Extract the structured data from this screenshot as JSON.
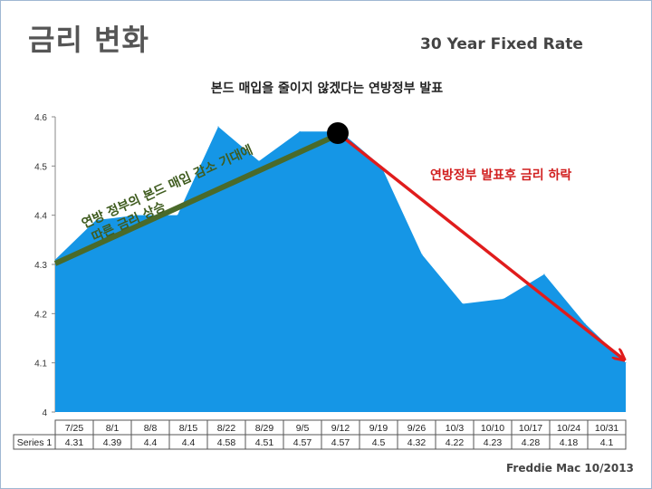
{
  "slide": {
    "title": "금리 변화",
    "subtitle": "30 Year Fixed Rate",
    "credit": "Freddie Mac 10/2013"
  },
  "colors": {
    "area": "#1596e6",
    "up_arrow": "#4a6a2a",
    "down_arrow": "#e01c1c",
    "marker": "#000000"
  },
  "chart_data": {
    "type": "area",
    "title": "본드 매입을 줄이지 않겠다는 연방정부 발표",
    "categories": [
      "7/25",
      "8/1",
      "8/8",
      "8/15",
      "8/22",
      "8/29",
      "9/5",
      "9/12",
      "9/19",
      "9/26",
      "10/3",
      "10/10",
      "10/17",
      "10/24",
      "10/31"
    ],
    "series": [
      {
        "name": "Series 1",
        "values": [
          4.31,
          4.39,
          4.4,
          4.4,
          4.58,
          4.51,
          4.57,
          4.57,
          4.5,
          4.32,
          4.22,
          4.23,
          4.28,
          4.18,
          4.1
        ]
      }
    ],
    "ylim": [
      4,
      4.6
    ],
    "yticks": [
      "4",
      "4.1",
      "4.2",
      "4.3",
      "4.4",
      "4.5",
      "4.6"
    ],
    "table_label": "Series 1",
    "annotations": {
      "rise_line1": "연방 정부의 본드 매입 감소 기대에",
      "rise_line2": "따른 금리 상승",
      "fall": "연방정부 발표후 금리 하락"
    }
  }
}
